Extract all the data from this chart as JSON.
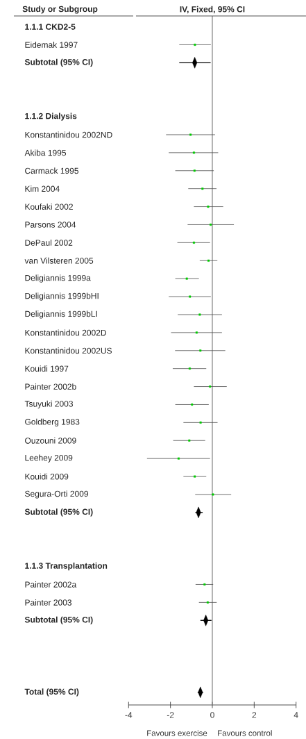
{
  "chart_data": {
    "type": "scatter",
    "title": "IV, Fixed, 95% CI",
    "ylabel": "Study or Subgroup",
    "annotations": [
      "Favours exercise",
      "Favours control"
    ],
    "categories": [
      "1.1.1 CKD2-5",
      "Eidemak 1997",
      "Subtotal (95% CI)",
      null,
      null,
      "1.1.2 Dialysis",
      "Konstantinidou 2002ND",
      "Akiba 1995",
      "Carmack 1995",
      "Kim 2004",
      "Koufaki 2002",
      "Parsons 2004",
      "DePaul  2002",
      "van Vilsteren 2005",
      "Deligiannis 1999a",
      "Deligiannis 1999bHI",
      "Deligiannis 1999bLI",
      "Konstantinidou 2002D",
      "Konstantinidou 2002US",
      "Kouidi 1997",
      "Painter 2002b",
      "Tsuyuki 2003",
      "Goldberg 1983",
      "Ouzouni 2009",
      "Leehey 2009",
      "Kouidi 2009",
      "Segura-Orti 2009",
      "Subtotal (95% CI)",
      null,
      null,
      "1.1.3 Transplantation",
      "Painter 2002a",
      "Painter 2003",
      "Subtotal (95% CI)",
      null,
      null,
      null,
      "Total (95% CI)"
    ],
    "orientation": "horizontal",
    "series": [
      {
        "color": "#00cc00",
        "marker": "square",
        "values": [
          null,
          -0.83,
          null,
          null,
          null,
          null,
          -1.04,
          -0.88,
          -0.85,
          -0.47,
          -0.2,
          -0.08,
          -0.88,
          -0.18,
          -1.22,
          -1.07,
          -0.6,
          -0.75,
          -0.57,
          -1.08,
          -0.11,
          -0.97,
          -0.56,
          -1.1,
          -1.61,
          -0.84,
          0.03,
          null,
          null,
          null,
          null,
          -0.37,
          -0.22,
          null,
          null,
          null,
          null,
          null
        ],
        "errors": [
          null,
          [
            -1.58,
            -0.07
          ],
          null,
          null,
          null,
          null,
          [
            -2.21,
            0.13
          ],
          [
            -2.08,
            0.28
          ],
          [
            -1.77,
            0.07
          ],
          [
            -1.15,
            0.2
          ],
          [
            -0.88,
            0.52
          ],
          [
            -1.18,
            1.03
          ],
          [
            -1.67,
            -0.11
          ],
          [
            -0.6,
            0.24
          ],
          [
            -1.77,
            -0.64
          ],
          [
            -2.08,
            -0.07
          ],
          [
            -1.65,
            0.46
          ],
          [
            -1.97,
            0.46
          ],
          [
            -1.78,
            0.62
          ],
          [
            -1.89,
            -0.29
          ],
          [
            -0.88,
            0.69
          ],
          [
            -1.77,
            -0.17
          ],
          [
            -1.38,
            0.25
          ],
          [
            -1.87,
            -0.34
          ],
          [
            -3.12,
            -0.11
          ],
          [
            -1.38,
            -0.29
          ],
          [
            -0.82,
            0.9
          ],
          null,
          null,
          null,
          null,
          [
            -0.8,
            0.04
          ],
          [
            -0.64,
            0.21
          ],
          null,
          null,
          null,
          null,
          null
        ]
      },
      {
        "color": "#000000",
        "marker": "diamond",
        "values": [
          null,
          null,
          -0.84,
          null,
          null,
          null,
          null,
          null,
          null,
          null,
          null,
          null,
          null,
          null,
          null,
          null,
          null,
          null,
          null,
          null,
          null,
          null,
          null,
          null,
          null,
          null,
          null,
          -0.66,
          null,
          null,
          null,
          null,
          null,
          -0.31,
          null,
          null,
          null,
          -0.57
        ],
        "errors": [
          null,
          null,
          [
            -1.58,
            -0.08
          ],
          null,
          null,
          null,
          null,
          null,
          null,
          null,
          null,
          null,
          null,
          null,
          null,
          null,
          null,
          null,
          null,
          null,
          null,
          null,
          null,
          null,
          null,
          null,
          null,
          [
            -0.81,
            -0.46
          ],
          null,
          null,
          null,
          null,
          null,
          [
            -0.57,
            -0.04
          ],
          null,
          null,
          null,
          [
            -0.7,
            -0.44
          ]
        ]
      }
    ],
    "xlim": [
      -4,
      4
    ],
    "xticks": [
      -4,
      -2,
      0,
      2,
      4
    ],
    "ref_lines": [
      {
        "axis": "x",
        "value": 0,
        "color": "#808080"
      }
    ],
    "tick_labels": "x",
    "grid": false
  }
}
